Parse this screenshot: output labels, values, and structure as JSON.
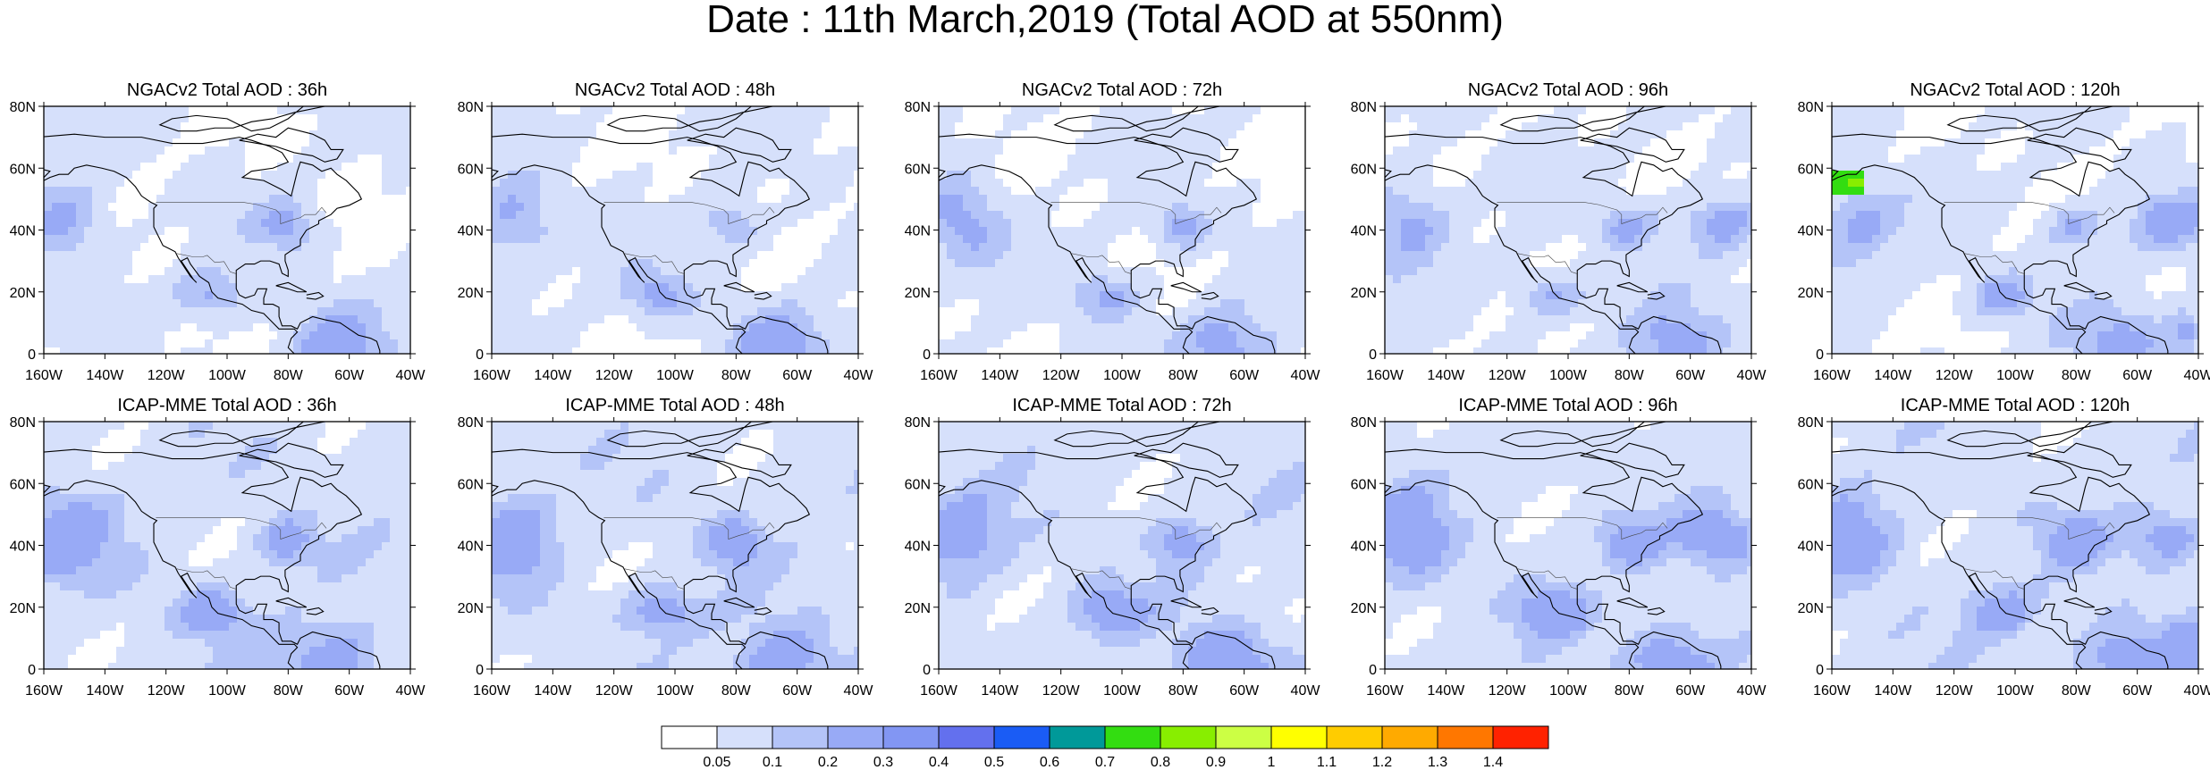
{
  "title": "Date : 11th March,2019 (Total AOD at 550nm)",
  "map": {
    "lat_ticks": [
      "0",
      "20N",
      "40N",
      "60N",
      "80N"
    ],
    "lon_ticks": [
      "160W",
      "140W",
      "120W",
      "100W",
      "80W",
      "60W",
      "40W"
    ],
    "lat_range": [
      0,
      80
    ],
    "lon_range": [
      -160,
      -40
    ]
  },
  "panels": [
    {
      "title": "NGACv2 Total AOD : 36h"
    },
    {
      "title": "NGACv2 Total AOD : 48h"
    },
    {
      "title": "NGACv2 Total AOD : 72h"
    },
    {
      "title": "NGACv2 Total AOD : 96h"
    },
    {
      "title": "NGACv2 Total AOD : 120h"
    },
    {
      "title": "ICAP-MME Total AOD : 36h"
    },
    {
      "title": "ICAP-MME Total AOD : 48h"
    },
    {
      "title": "ICAP-MME Total AOD : 72h"
    },
    {
      "title": "ICAP-MME Total AOD : 96h"
    },
    {
      "title": "ICAP-MME Total AOD : 120h"
    }
  ],
  "colorbar": {
    "labels": [
      "0.05",
      "0.1",
      "0.2",
      "0.3",
      "0.4",
      "0.5",
      "0.6",
      "0.7",
      "0.8",
      "0.9",
      "1",
      "1.1",
      "1.2",
      "1.3",
      "1.4"
    ],
    "colors": [
      "#ffffff",
      "#d6e0fb",
      "#b4c4f8",
      "#98aaf6",
      "#8296f3",
      "#6370ee",
      "#1a5cf5",
      "#009999",
      "#33dd11",
      "#88ee00",
      "#ccff44",
      "#ffff00",
      "#ffcc00",
      "#ffaa00",
      "#ff7700",
      "#ff2200"
    ]
  }
}
